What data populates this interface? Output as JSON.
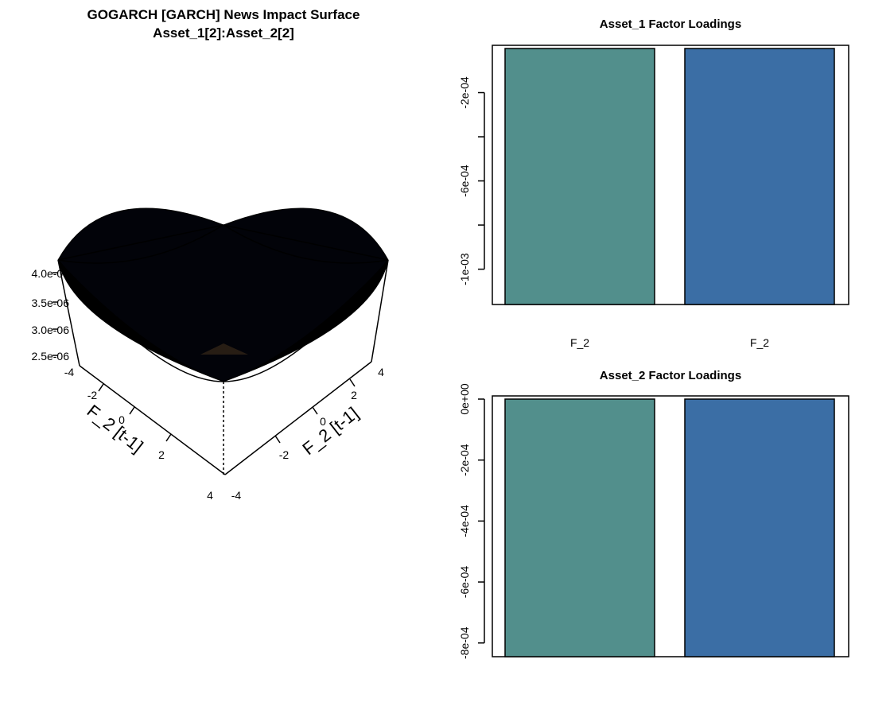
{
  "surface": {
    "title_line1": "GOGARCH [GARCH] News Impact Surface",
    "title_line2": "Asset_1[2]:Asset_2[2]",
    "z_ticks": [
      "4.0e-06",
      "3.5e-06",
      "3.0e-06",
      "2.5e-06"
    ],
    "x_label": "F_2 [t-1]",
    "y_label": "F_2 [t-1]",
    "x_ticks": [
      "-4",
      "-2",
      "0",
      "2",
      "4"
    ],
    "y_ticks": [
      "-4",
      "-2",
      "0",
      "2",
      "4"
    ],
    "surface_color": "#000000"
  },
  "chart_data": [
    {
      "type": "surface",
      "title": "GOGARCH [GARCH] News Impact Surface",
      "subtitle": "Asset_1[2]:Asset_2[2]",
      "xlabel": "F_2 [t-1]",
      "ylabel": "F_2 [t-1]",
      "xlim": [
        -4,
        4
      ],
      "ylim": [
        -4,
        4
      ],
      "zlim": [
        2.5e-06,
        4e-06
      ],
      "zticks": [
        "4.0e-06",
        "3.5e-06",
        "3.0e-06",
        "2.5e-06"
      ],
      "shape": "bowl, minimum at (0,0), maximum at corners"
    },
    {
      "type": "bar",
      "title": "Asset_1 Factor Loadings",
      "categories": [
        "F_2",
        "F_2"
      ],
      "values": [
        -0.00116,
        -0.00116
      ],
      "ylim": [
        -0.00116,
        0
      ],
      "yticks": [
        -0.0002,
        -0.0004,
        -0.0006,
        -0.0008,
        -0.001
      ],
      "ytick_labels": [
        "-2e-04",
        "",
        "-6e-04",
        "",
        "-1e-03"
      ],
      "colors": [
        "#528f8c",
        "#3b6ea5"
      ]
    },
    {
      "type": "bar",
      "title": "Asset_2 Factor Loadings",
      "categories": [
        "",
        ""
      ],
      "values": [
        -0.000845,
        -0.000845
      ],
      "ylim": [
        -0.000845,
        0
      ],
      "yticks": [
        0,
        -0.0002,
        -0.0004,
        -0.0006,
        -0.0008
      ],
      "ytick_labels": [
        "0e+00",
        "-2e-04",
        "-4e-04",
        "-6e-04",
        "-8e-04"
      ],
      "colors": [
        "#528f8c",
        "#3b6ea5"
      ]
    }
  ]
}
